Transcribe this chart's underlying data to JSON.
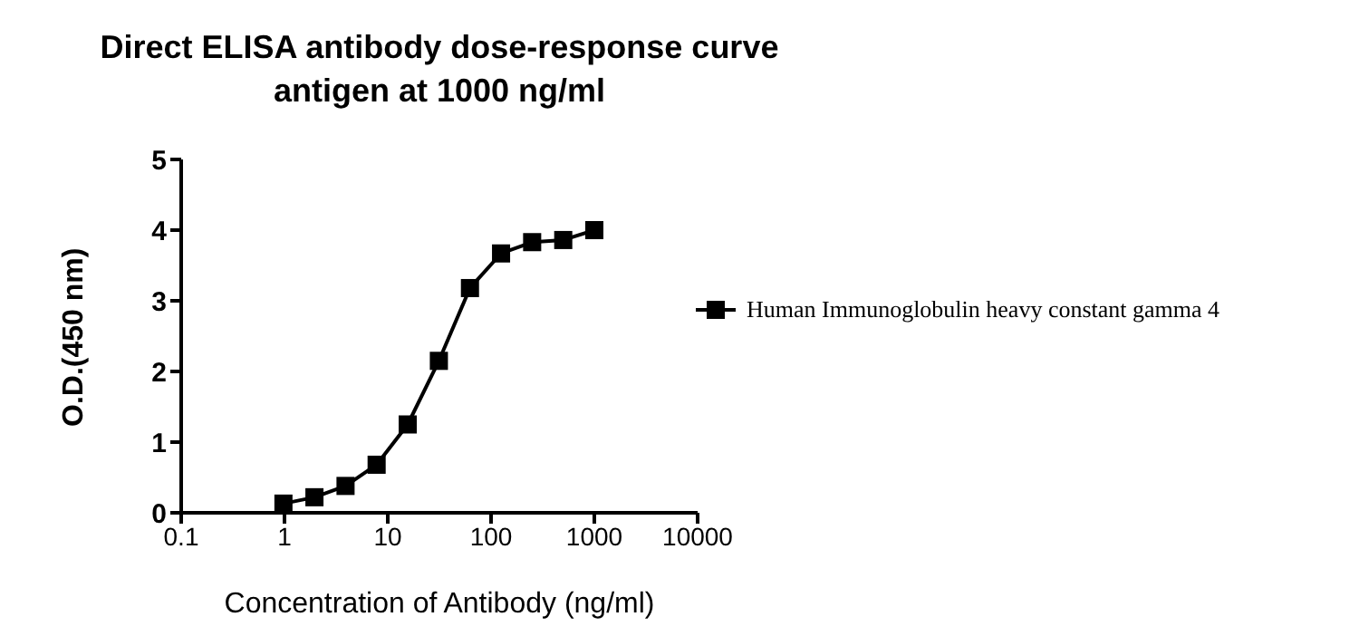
{
  "chart_data": {
    "type": "line",
    "title": "Direct ELISA antibody dose-response curve",
    "subtitle": "antigen at 1000 ng/ml",
    "xlabel": "Concentration of Antibody (ng/ml)",
    "ylabel": "O.D.(450 nm)",
    "x": [
      0.977,
      1.95,
      3.9,
      7.8,
      15.6,
      31.25,
      62.5,
      125,
      250,
      500,
      1000
    ],
    "series": [
      {
        "name": "Human Immunoglobulin heavy constant gamma 4",
        "color": "#000000",
        "values": [
          0.13,
          0.22,
          0.38,
          0.68,
          1.25,
          2.15,
          3.18,
          3.67,
          3.83,
          3.86,
          4.0
        ]
      }
    ],
    "log": "x",
    "xlim": [
      0.1,
      10000
    ],
    "xticks": [
      0.1,
      1,
      10,
      100,
      1000,
      10000
    ],
    "ylim": [
      0,
      5
    ],
    "yticks": [
      0,
      1,
      2,
      3,
      4,
      5
    ],
    "marker": "square",
    "line_style": "solid",
    "grid": false,
    "legend": "right"
  }
}
